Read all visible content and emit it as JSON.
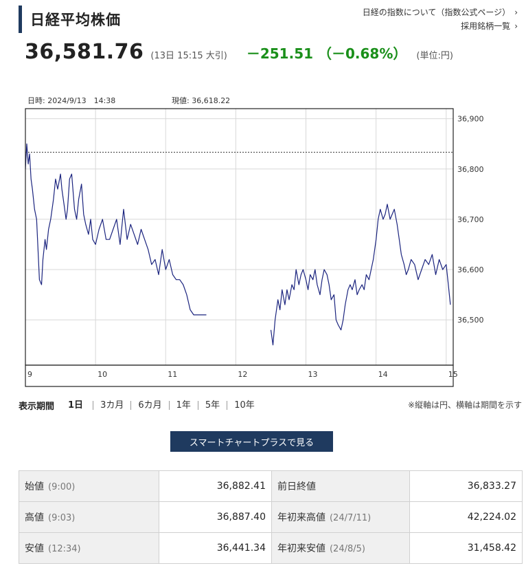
{
  "page": {
    "title": "日経平均株価",
    "links": [
      "日経の指数について（指数公式ページ）",
      "採用銘柄一覧"
    ]
  },
  "quote": {
    "price": "36,581.76",
    "time_note": "(13日 15:15 大引)",
    "change": "－251.51 （－0.68%）",
    "unit": "(単位:円)"
  },
  "chart_info": {
    "datetime": "日時: 2024/9/13　14:38",
    "current": "現値: 36,618.22"
  },
  "chart_data": {
    "type": "line",
    "title": "",
    "xlabel": "",
    "ylabel": "",
    "x_ticks": [
      "9",
      "10",
      "11",
      "12",
      "13",
      "14",
      "15"
    ],
    "xlim": [
      9.0,
      15.1
    ],
    "y_ticks": [
      "36,500",
      "36,600",
      "36,700",
      "36,800",
      "36,900"
    ],
    "ylim": [
      36410,
      36920
    ],
    "reference_line": {
      "label": "前日終値",
      "value": 36833.27,
      "style": "dashed"
    },
    "grid": true,
    "color": "#1a237e",
    "series": [
      {
        "name": "",
        "segment": "morning",
        "x": [
          9.0,
          9.02,
          9.04,
          9.06,
          9.08,
          9.1,
          9.13,
          9.16,
          9.2,
          9.23,
          9.25,
          9.28,
          9.3,
          9.33,
          9.36,
          9.4,
          9.43,
          9.46,
          9.5,
          9.52,
          9.55,
          9.58,
          9.6,
          9.63,
          9.66,
          9.7,
          9.73,
          9.76,
          9.8,
          9.83,
          9.86,
          9.9,
          9.93,
          9.96,
          10.0,
          10.05,
          10.1,
          10.15,
          10.2,
          10.25,
          10.3,
          10.35,
          10.4,
          10.45,
          10.5,
          10.55,
          10.6,
          10.65,
          10.7,
          10.75,
          10.8,
          10.85,
          10.9,
          10.95,
          11.0,
          11.05,
          11.1,
          11.15,
          11.2,
          11.25,
          11.3,
          11.35,
          11.4,
          11.45,
          11.5,
          11.55,
          11.58
        ],
        "y": [
          36800,
          36850,
          36810,
          36830,
          36780,
          36760,
          36720,
          36700,
          36580,
          36570,
          36620,
          36660,
          36640,
          36680,
          36700,
          36740,
          36780,
          36760,
          36790,
          36760,
          36730,
          36700,
          36720,
          36780,
          36790,
          36720,
          36700,
          36740,
          36770,
          36710,
          36690,
          36670,
          36700,
          36660,
          36650,
          36680,
          36700,
          36660,
          36660,
          36680,
          36700,
          36650,
          36720,
          36660,
          36690,
          36670,
          36650,
          36680,
          36660,
          36640,
          36610,
          36620,
          36590,
          36640,
          36600,
          36620,
          36590,
          36580,
          36580,
          36570,
          36550,
          36520,
          36510,
          36510,
          36510,
          36510,
          36510
        ]
      },
      {
        "name": "",
        "segment": "afternoon",
        "x": [
          12.5,
          12.53,
          12.56,
          12.6,
          12.63,
          12.66,
          12.7,
          12.73,
          12.76,
          12.8,
          12.83,
          12.86,
          12.9,
          12.93,
          12.96,
          13.0,
          13.03,
          13.06,
          13.1,
          13.13,
          13.16,
          13.2,
          13.23,
          13.26,
          13.3,
          13.33,
          13.36,
          13.4,
          13.43,
          13.46,
          13.5,
          13.53,
          13.56,
          13.6,
          13.63,
          13.66,
          13.7,
          13.73,
          13.76,
          13.8,
          13.83,
          13.86,
          13.9,
          13.93,
          13.96,
          14.0,
          14.03,
          14.06,
          14.1,
          14.13,
          14.16,
          14.2,
          14.23,
          14.26,
          14.3,
          14.33,
          14.36,
          14.4,
          14.43,
          14.46,
          14.5,
          14.55,
          14.6,
          14.65,
          14.7,
          14.75,
          14.8,
          14.85,
          14.9,
          14.95,
          15.0,
          15.03,
          15.06
        ],
        "y": [
          36480,
          36450,
          36500,
          36540,
          36520,
          36560,
          36530,
          36560,
          36540,
          36570,
          36560,
          36600,
          36570,
          36590,
          36600,
          36580,
          36560,
          36590,
          36580,
          36600,
          36570,
          36550,
          36580,
          36600,
          36590,
          36570,
          36540,
          36550,
          36500,
          36490,
          36480,
          36500,
          36530,
          36560,
          36570,
          36560,
          36580,
          36550,
          36560,
          36570,
          36560,
          36590,
          36580,
          36600,
          36620,
          36660,
          36700,
          36720,
          36700,
          36710,
          36730,
          36700,
          36710,
          36720,
          36690,
          36660,
          36630,
          36610,
          36590,
          36600,
          36620,
          36610,
          36580,
          36600,
          36620,
          36610,
          36630,
          36590,
          36620,
          36600,
          36610,
          36570,
          36530
        ]
      }
    ]
  },
  "periods": {
    "label": "表示期間",
    "items": [
      "1日",
      "3カ月",
      "6カ月",
      "1年",
      "5年",
      "10年"
    ],
    "active": "1日",
    "note": "※縦軸は円、横軸は期間を示す"
  },
  "smart_button": "スマートチャートプラスで見る",
  "stats": {
    "rows": [
      {
        "l1": "始値",
        "s1": "(9:00)",
        "v1": "36,882.41",
        "l2": "前日終値",
        "s2": "",
        "v2": "36,833.27"
      },
      {
        "l1": "高値",
        "s1": "(9:03)",
        "v1": "36,887.40",
        "l2": "年初来高値",
        "s2": "(24/7/11)",
        "v2": "42,224.02"
      },
      {
        "l1": "安値",
        "s1": "(12:34)",
        "v1": "36,441.34",
        "l2": "年初来安値",
        "s2": "(24/8/5)",
        "v2": "31,458.42"
      }
    ]
  }
}
